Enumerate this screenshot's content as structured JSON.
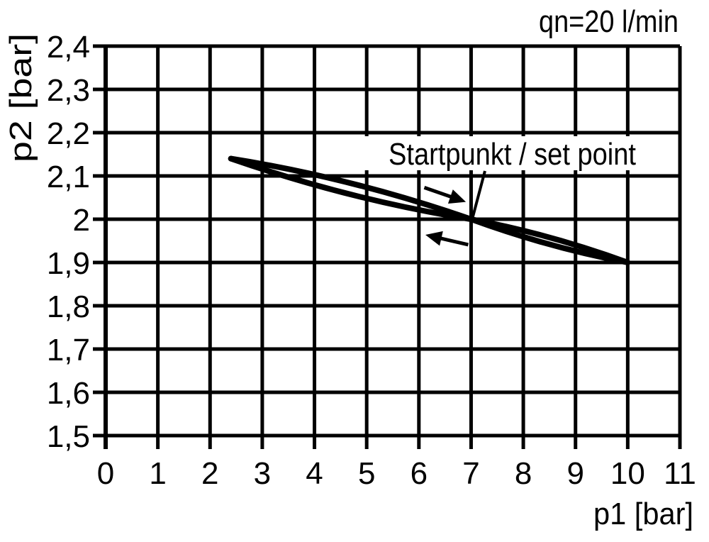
{
  "chart_data": {
    "type": "line",
    "title": "qn=20 l/min",
    "xlabel": "p1 [bar]",
    "ylabel": "p2 [bar]",
    "xlim": [
      0,
      11
    ],
    "ylim": [
      1.5,
      2.4
    ],
    "grid": true,
    "decimal_separator": ",",
    "ink_color": "#000000",
    "background_color": "#ffffff",
    "x_tick_values": [
      0,
      1,
      2,
      3,
      4,
      5,
      6,
      7,
      8,
      9,
      10,
      11
    ],
    "x_tick_labels": [
      "0",
      "1",
      "2",
      "3",
      "4",
      "5",
      "6",
      "7",
      "8",
      "9",
      "10",
      "11"
    ],
    "y_tick_values": [
      2.4,
      2.3,
      2.2,
      2.1,
      2.0,
      1.9,
      1.8,
      1.7,
      1.6,
      1.5
    ],
    "y_tick_labels": [
      "2,4",
      "2,3",
      "2,2",
      "2,1",
      "2",
      "1,9",
      "1,8",
      "1,7",
      "1,6",
      "1,5"
    ],
    "series": [
      {
        "name": "hysteresis upper branch",
        "points": [
          [
            2.4,
            2.14
          ],
          [
            4.0,
            2.115
          ],
          [
            5.5,
            2.06
          ],
          [
            7.0,
            2.0
          ],
          [
            8.5,
            1.955
          ],
          [
            10.0,
            1.9
          ]
        ]
      },
      {
        "name": "hysteresis lower branch",
        "points": [
          [
            2.4,
            2.14
          ],
          [
            4.0,
            2.09
          ],
          [
            5.5,
            2.04
          ],
          [
            7.0,
            2.0
          ],
          [
            8.5,
            1.94
          ],
          [
            10.0,
            1.9
          ]
        ]
      }
    ],
    "hysteresis": {
      "start_tip": {
        "p1": 2.4,
        "p2": 2.14
      },
      "set_point": {
        "p1": 7.0,
        "p2": 2.0
      },
      "end_tip": {
        "p1": 10.0,
        "p2": 1.9
      },
      "left_loop_half_height_bar": 0.013,
      "right_loop_half_height_bar": 0.008
    },
    "annotations": {
      "flow_rate_label": "qn=20 l/min",
      "set_point_label": "Startpunkt / set point",
      "direction_arrows": [
        {
          "points": "right",
          "meaning": "increasing p1",
          "at": {
            "p1": 6.9,
            "p2": 2.04
          },
          "angle_deg": 19
        },
        {
          "points": "left",
          "meaning": "decreasing p1",
          "at": {
            "p1": 6.125,
            "p2": 1.964
          },
          "angle_deg": 193
        }
      ]
    }
  }
}
